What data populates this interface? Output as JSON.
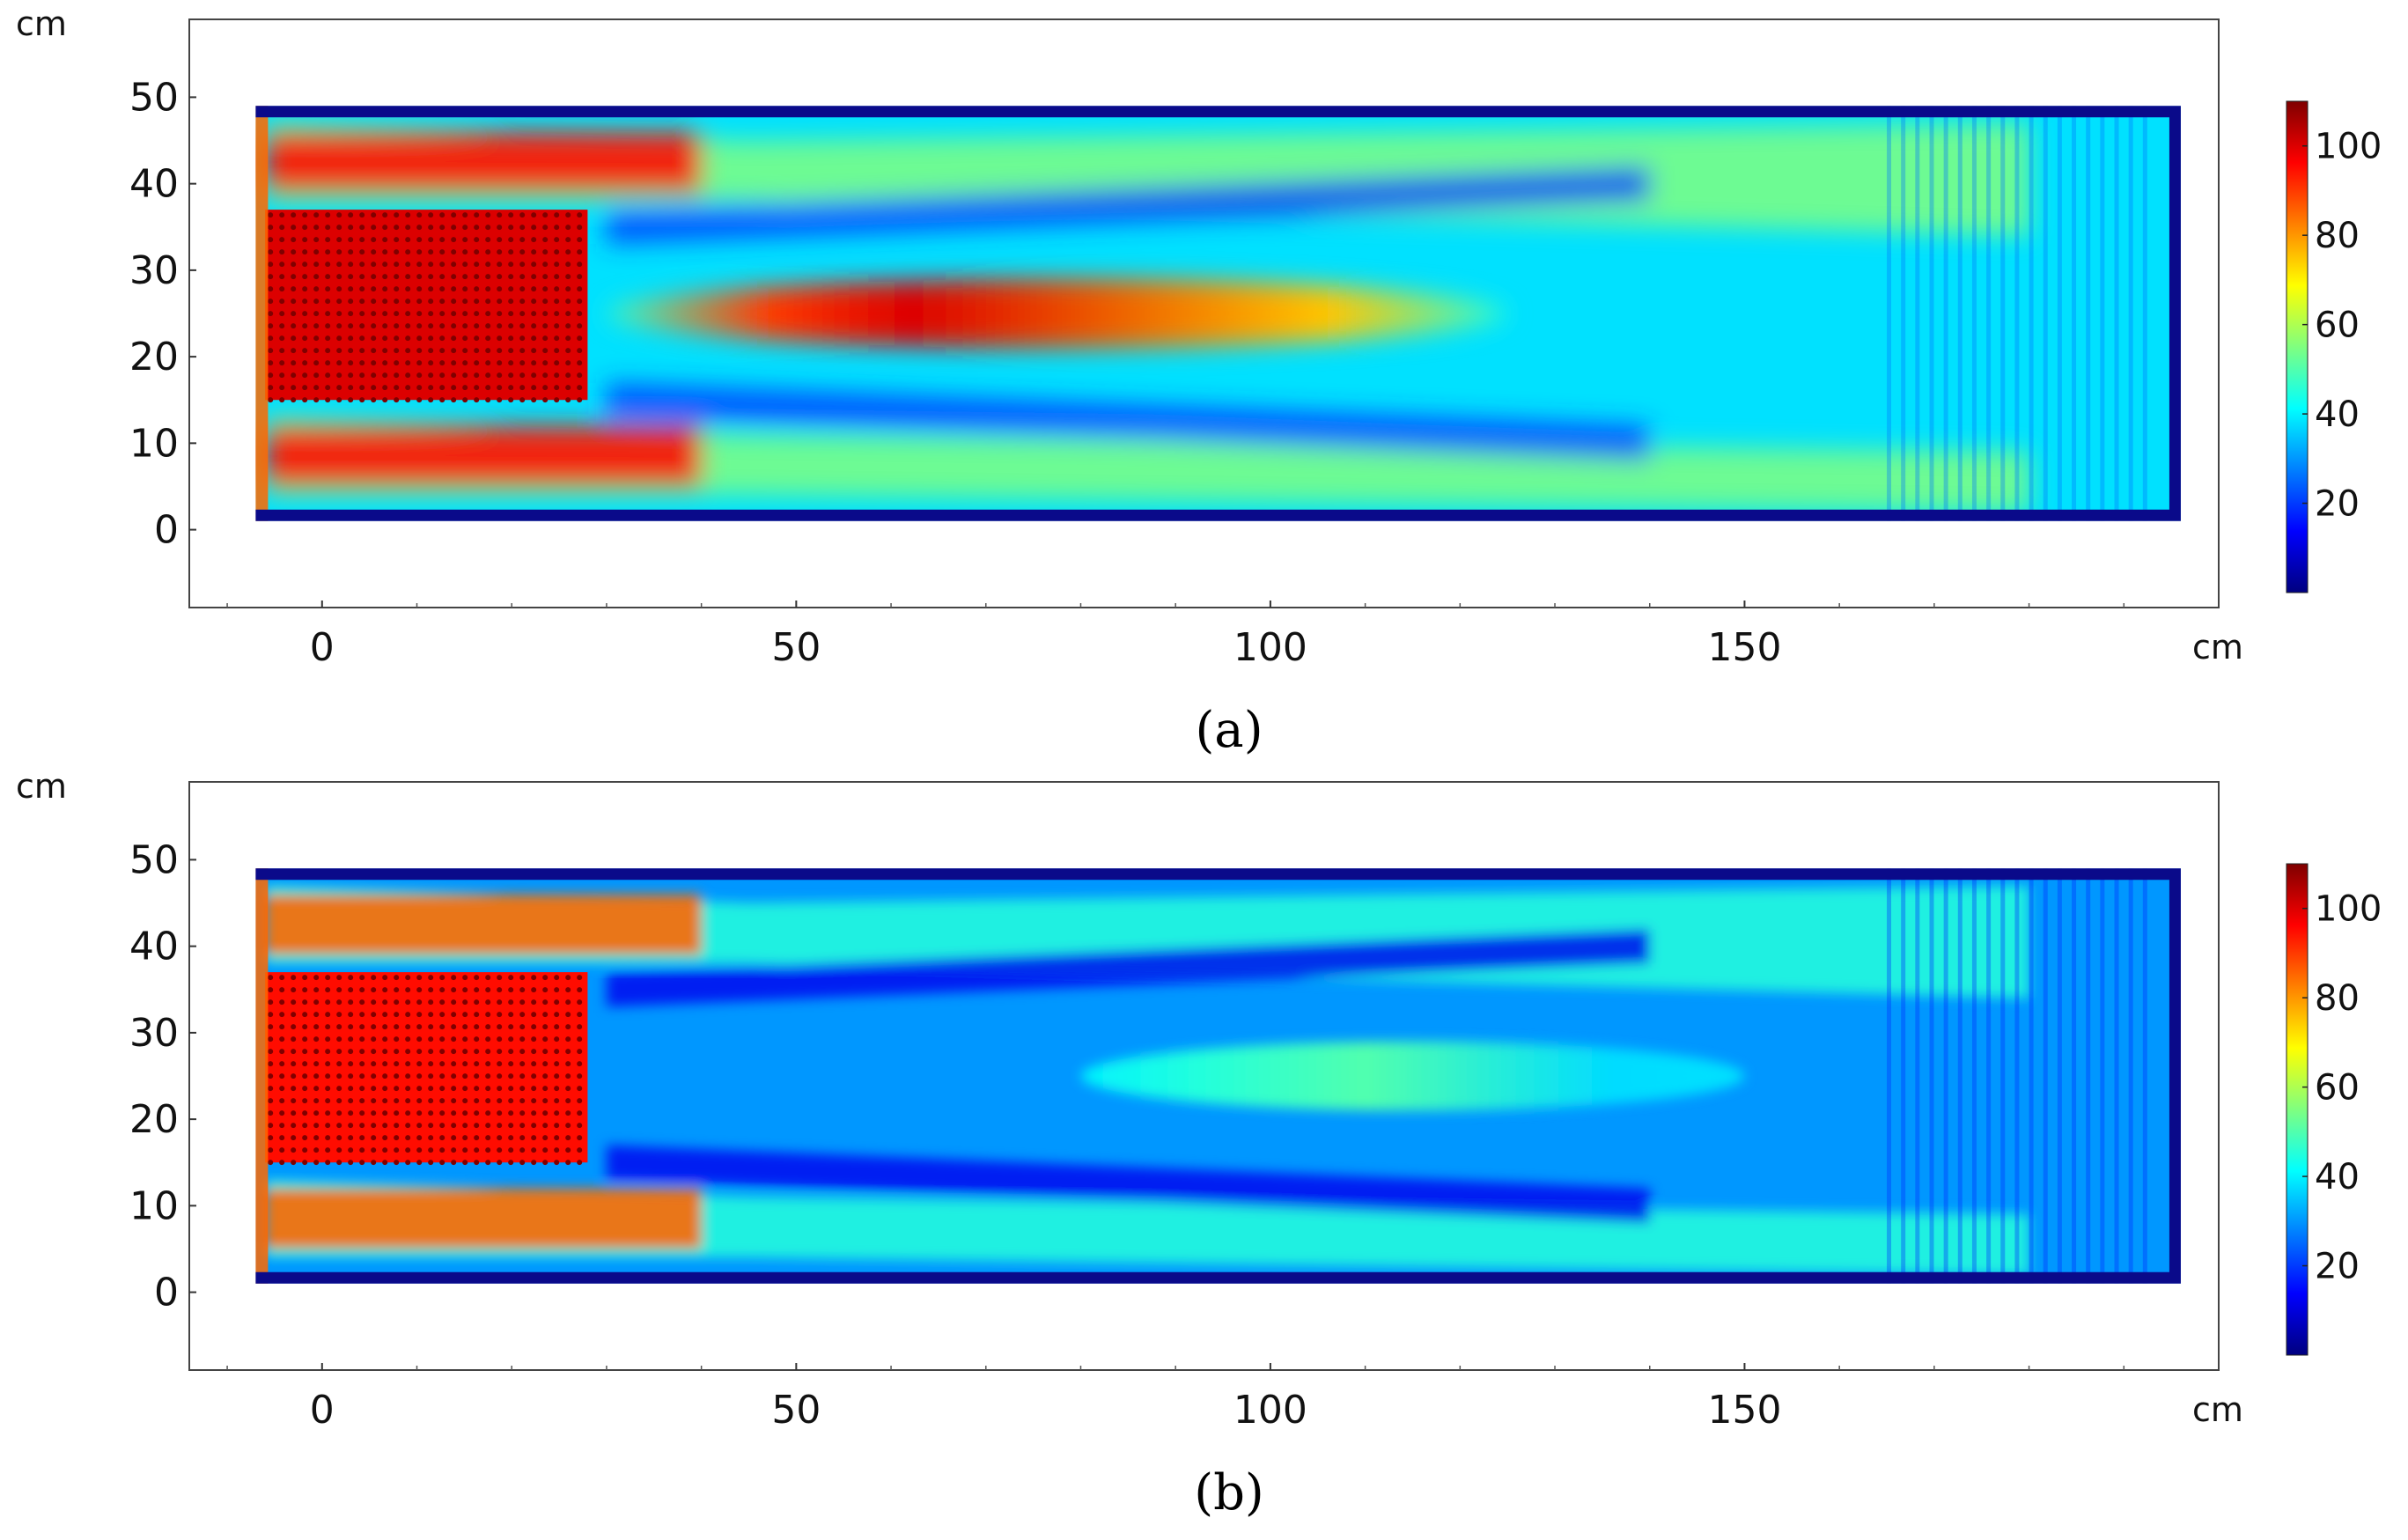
{
  "figure": {
    "captions": [
      "(a)",
      "(b)"
    ]
  },
  "chart_data": [
    {
      "type": "heatmap",
      "panel": "a",
      "caption": "(a)",
      "x_unit": "cm",
      "y_unit": "cm",
      "xlim": [
        -14,
        200
      ],
      "ylim": [
        -9,
        59
      ],
      "x_ticks": [
        0,
        50,
        100,
        150
      ],
      "y_ticks": [
        0,
        10,
        20,
        30,
        40,
        50
      ],
      "domain_x": [
        -7,
        196
      ],
      "domain_y": [
        1,
        49
      ],
      "colorbar": {
        "min": 0,
        "max": 110,
        "ticks": [
          20,
          40,
          60,
          80,
          100
        ],
        "colormap": "jet"
      },
      "features": {
        "source_block": {
          "x": [
            -6,
            28
          ],
          "y": [
            15,
            37
          ],
          "level": 100
        },
        "central_beam": {
          "y_center": 25,
          "x_start": 30,
          "x_end": 125,
          "peak_level": 100,
          "peak_x": 62
        },
        "side_lobes_level": 55,
        "background_level": 38
      }
    },
    {
      "type": "heatmap",
      "panel": "b",
      "caption": "(b)",
      "x_unit": "cm",
      "y_unit": "cm",
      "xlim": [
        -14,
        200
      ],
      "ylim": [
        -9,
        59
      ],
      "x_ticks": [
        0,
        50,
        100,
        150
      ],
      "y_ticks": [
        0,
        10,
        20,
        30,
        40,
        50
      ],
      "domain_x": [
        -7,
        196
      ],
      "domain_y": [
        1,
        49
      ],
      "colorbar": {
        "min": 0,
        "max": 110,
        "ticks": [
          20,
          40,
          60,
          80,
          100
        ],
        "colormap": "jet"
      },
      "features": {
        "source_block": {
          "x": [
            -6,
            28
          ],
          "y": [
            15,
            37
          ],
          "level": 95
        },
        "central_beam": {
          "y_center": 25,
          "x_start": 80,
          "x_end": 150,
          "peak_level": 50,
          "peak_x": 110
        },
        "side_lobes_level": 45,
        "background_level": 30
      }
    }
  ]
}
